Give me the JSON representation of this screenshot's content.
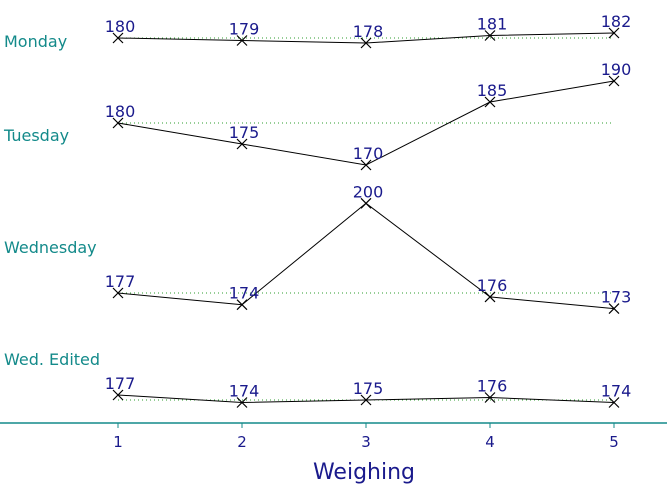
{
  "chart_data": {
    "type": "line",
    "xlabel": "Weighing",
    "x": [
      1,
      2,
      3,
      4,
      5
    ],
    "series": [
      {
        "name": "Monday",
        "values": [
          180,
          179,
          178,
          181,
          182
        ],
        "baseline": 180
      },
      {
        "name": "Tuesday",
        "values": [
          180,
          175,
          170,
          185,
          190
        ],
        "baseline": 180
      },
      {
        "name": "Wednesday",
        "values": [
          177,
          174,
          200,
          176,
          173
        ],
        "baseline": 177
      },
      {
        "name": "Wed. Edited",
        "values": [
          177,
          174,
          175,
          176,
          174
        ],
        "baseline": 175
      }
    ],
    "colors": {
      "row_label": "#138a8a",
      "value_label": "#1a1a8c",
      "line": "#000000",
      "baseline": "#2e9e2e",
      "axis": "#138a8a"
    }
  }
}
